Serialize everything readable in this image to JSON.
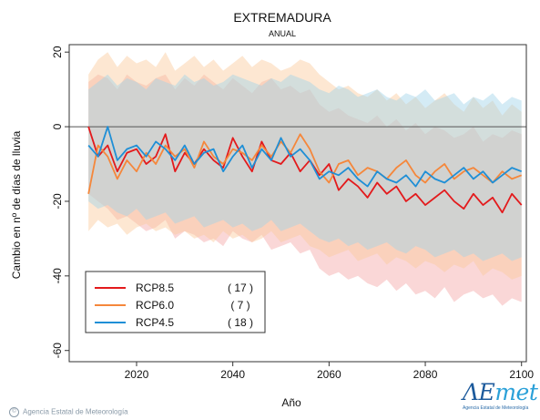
{
  "chart_data": {
    "type": "line",
    "title": "EXTREMADURA",
    "subtitle": "ANUAL",
    "xlabel": "Año",
    "ylabel": "Cambio en nº de días de lluvia",
    "xlim": [
      2006,
      2101
    ],
    "ylim": [
      -63,
      22
    ],
    "x_ticks": [
      2020,
      2040,
      2060,
      2080,
      2100
    ],
    "y_ticks": [
      20,
      0,
      -20,
      -40,
      -60
    ],
    "zero_line": 0,
    "grid": false,
    "legend_position": "bottom-left",
    "x": [
      2010,
      2012,
      2014,
      2016,
      2018,
      2020,
      2022,
      2024,
      2026,
      2028,
      2030,
      2032,
      2034,
      2036,
      2038,
      2040,
      2042,
      2044,
      2046,
      2048,
      2050,
      2052,
      2054,
      2056,
      2058,
      2060,
      2062,
      2064,
      2066,
      2068,
      2070,
      2072,
      2074,
      2076,
      2078,
      2080,
      2082,
      2084,
      2086,
      2088,
      2090,
      2092,
      2094,
      2096,
      2098,
      2100
    ],
    "series": [
      {
        "name": "RCP8.5",
        "count": "17",
        "color": "#e31a1c",
        "band_color": "#f4a6a6",
        "values": [
          0,
          -8,
          -5,
          -12,
          -7,
          -6,
          -10,
          -8,
          -2,
          -12,
          -7,
          -10,
          -6,
          -9,
          -11,
          -3,
          -8,
          -12,
          -4,
          -9,
          -10,
          -7,
          -12,
          -9,
          -13,
          -10,
          -17,
          -14,
          -16,
          -19,
          -15,
          -18,
          -16,
          -20,
          -18,
          -21,
          -19,
          -17,
          -20,
          -22,
          -18,
          -21,
          -19,
          -23,
          -18,
          -21
        ],
        "band_upper": [
          12,
          14,
          13,
          10,
          14,
          12,
          11,
          13,
          14,
          10,
          13,
          11,
          14,
          12,
          10,
          13,
          11,
          9,
          12,
          13,
          10,
          11,
          9,
          10,
          6,
          4,
          5,
          3,
          2,
          1,
          3,
          0,
          2,
          -1,
          1,
          -2,
          0,
          -1,
          -3,
          -2,
          0,
          -4,
          -2,
          -3,
          -1,
          -2
        ],
        "band_lower": [
          -18,
          -20,
          -22,
          -25,
          -24,
          -26,
          -28,
          -27,
          -25,
          -30,
          -28,
          -29,
          -31,
          -30,
          -32,
          -28,
          -30,
          -31,
          -29,
          -33,
          -32,
          -31,
          -34,
          -33,
          -38,
          -40,
          -39,
          -41,
          -40,
          -42,
          -43,
          -41,
          -44,
          -42,
          -45,
          -44,
          -46,
          -43,
          -47,
          -45,
          -44,
          -46,
          -45,
          -48,
          -46,
          -47
        ]
      },
      {
        "name": "RCP6.0",
        "count": "7",
        "color": "#f5873b",
        "band_color": "#fbc99b",
        "values": [
          -18,
          -5,
          -8,
          -14,
          -9,
          -12,
          -7,
          -10,
          -5,
          -8,
          -6,
          -11,
          -4,
          -8,
          -10,
          -6,
          -7,
          -9,
          -5,
          -8,
          -4,
          -7,
          -2,
          -6,
          -12,
          -15,
          -10,
          -9,
          -13,
          -11,
          -12,
          -14,
          -11,
          -9,
          -13,
          -15,
          -12,
          -10,
          -14,
          -12,
          -11,
          -13,
          -15,
          -12,
          -14,
          -13
        ],
        "band_upper": [
          14,
          18,
          20,
          16,
          19,
          17,
          18,
          16,
          20,
          15,
          17,
          19,
          16,
          18,
          15,
          17,
          19,
          16,
          18,
          17,
          15,
          16,
          18,
          17,
          14,
          12,
          10,
          11,
          9,
          8,
          10,
          7,
          9,
          6,
          8,
          5,
          7,
          9,
          6,
          4,
          8,
          5,
          7,
          3,
          6,
          4
        ],
        "band_lower": [
          -28,
          -25,
          -27,
          -26,
          -29,
          -27,
          -26,
          -28,
          -27,
          -29,
          -28,
          -30,
          -29,
          -31,
          -28,
          -30,
          -29,
          -31,
          -30,
          -28,
          -31,
          -30,
          -29,
          -32,
          -33,
          -35,
          -34,
          -33,
          -36,
          -35,
          -34,
          -37,
          -35,
          -36,
          -38,
          -36,
          -37,
          -39,
          -37,
          -38,
          -36,
          -40,
          -38,
          -39,
          -41,
          -40
        ]
      },
      {
        "name": "RCP4.5",
        "count": "18",
        "color": "#1f8fd6",
        "band_color": "#9fd2e9",
        "values": [
          -5,
          -8,
          0,
          -9,
          -6,
          -5,
          -8,
          -4,
          -6,
          -9,
          -5,
          -10,
          -7,
          -6,
          -12,
          -8,
          -5,
          -11,
          -6,
          -9,
          -3,
          -8,
          -6,
          -9,
          -14,
          -12,
          -13,
          -11,
          -14,
          -16,
          -12,
          -14,
          -15,
          -13,
          -16,
          -12,
          -14,
          -15,
          -13,
          -11,
          -14,
          -12,
          -15,
          -13,
          -11,
          -12
        ],
        "band_upper": [
          10,
          12,
          14,
          11,
          13,
          12,
          10,
          13,
          12,
          11,
          14,
          12,
          13,
          11,
          12,
          14,
          13,
          12,
          11,
          13,
          12,
          14,
          13,
          12,
          10,
          9,
          11,
          10,
          8,
          9,
          10,
          8,
          7,
          9,
          8,
          10,
          7,
          8,
          9,
          6,
          8,
          7,
          9,
          6,
          8,
          7
        ],
        "band_lower": [
          -20,
          -22,
          -21,
          -23,
          -24,
          -22,
          -25,
          -24,
          -23,
          -26,
          -25,
          -24,
          -27,
          -26,
          -25,
          -27,
          -26,
          -28,
          -27,
          -25,
          -28,
          -27,
          -26,
          -28,
          -30,
          -31,
          -30,
          -32,
          -31,
          -33,
          -32,
          -31,
          -33,
          -34,
          -32,
          -33,
          -35,
          -34,
          -33,
          -35,
          -34,
          -36,
          -35,
          -34,
          -36,
          -35
        ]
      }
    ]
  },
  "credit": "Agencia Estatal de Meteorología",
  "logo": {
    "main": "AEmet",
    "sub": "Agencia Estatal de Meteorología"
  }
}
